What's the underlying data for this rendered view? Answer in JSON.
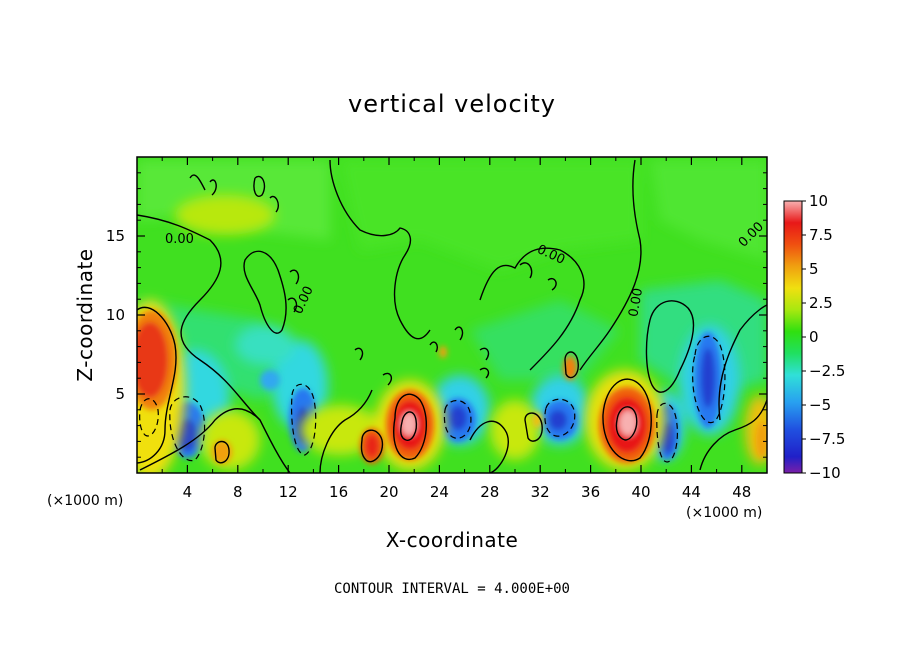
{
  "chart_data": {
    "type": "heatmap",
    "title": "vertical velocity",
    "xlabel": "X-coordinate",
    "ylabel": "Z-coordinate",
    "x_unit_note": "(×1000 m)",
    "contour_interval_text": "CONTOUR INTERVAL = 4.000E+00",
    "xlim": [
      0,
      50
    ],
    "ylim": [
      0,
      20
    ],
    "x_ticks": [
      "4",
      "8",
      "12",
      "16",
      "20",
      "24",
      "28",
      "32",
      "36",
      "40",
      "44",
      "48"
    ],
    "y_ticks": [
      "5",
      "10",
      "15"
    ],
    "colorbar": {
      "range": [
        -10,
        10
      ],
      "tick_labels": [
        "10",
        "7.5",
        "5",
        "2.5",
        "0",
        "-2.5",
        "-5",
        "-7.5",
        "-10"
      ]
    },
    "contour_labels": [
      "0.00",
      "0.00",
      "0.00",
      "0.00",
      "0.00"
    ],
    "features": [
      {
        "kind": "updraft",
        "x": 0.6,
        "z": 7.0,
        "value": 8
      },
      {
        "kind": "downdraft",
        "x": 2.5,
        "z": 2.0,
        "value": -7
      },
      {
        "kind": "updraft",
        "x": 18.5,
        "z": 1.8,
        "value": 7
      },
      {
        "kind": "updraft",
        "x": 21.5,
        "z": 3.0,
        "value": 10
      },
      {
        "kind": "downdraft",
        "x": 13,
        "z": 3.0,
        "value": -7
      },
      {
        "kind": "downdraft",
        "x": 25.5,
        "z": 3.5,
        "value": -6
      },
      {
        "kind": "downdraft",
        "x": 33,
        "z": 3.5,
        "value": -6
      },
      {
        "kind": "updraft",
        "x": 38.8,
        "z": 3.0,
        "value": 10
      },
      {
        "kind": "downdraft",
        "x": 42,
        "z": 2.5,
        "value": -7
      },
      {
        "kind": "downdraft",
        "x": 45,
        "z": 6.0,
        "value": -7
      },
      {
        "kind": "updraft",
        "x": 33.5,
        "z": 6.5,
        "value": 5
      }
    ]
  }
}
